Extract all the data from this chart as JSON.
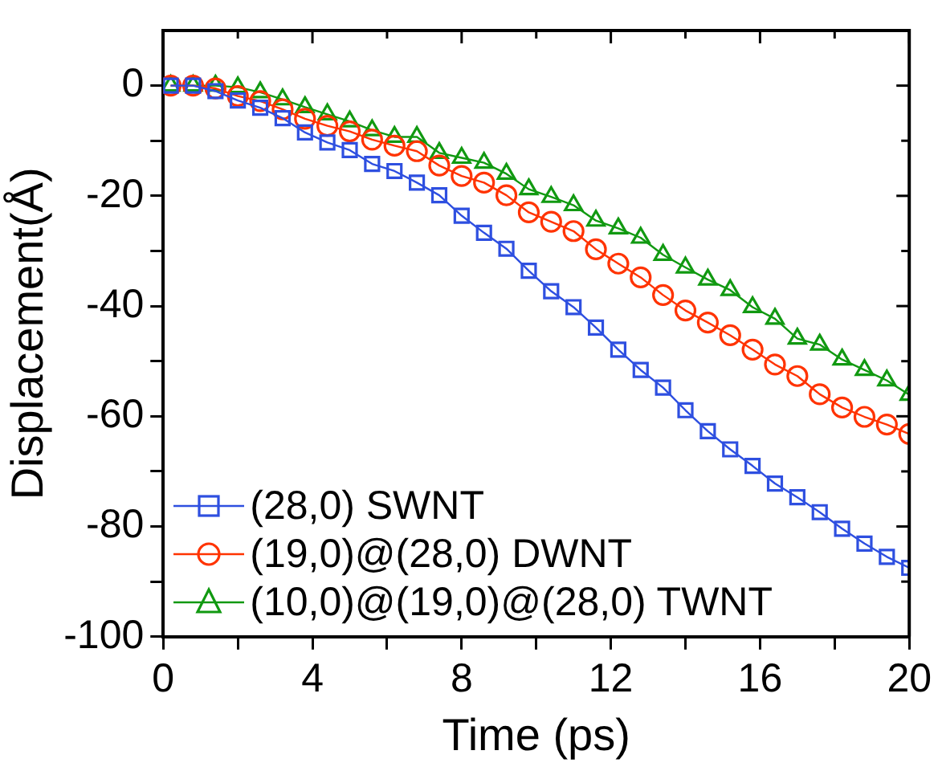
{
  "chart_data": {
    "type": "line",
    "xlabel": "Time (ps)",
    "ylabel": "Displacement(Å)",
    "x": [
      0.2,
      0.8,
      1.4,
      2.0,
      2.6,
      3.2,
      3.8,
      4.4,
      5.0,
      5.6,
      6.2,
      6.8,
      7.4,
      8.0,
      8.6,
      9.2,
      9.8,
      10.4,
      11.0,
      11.6,
      12.2,
      12.8,
      13.4,
      14.0,
      14.6,
      15.2,
      15.8,
      16.4,
      17.0,
      17.6,
      18.2,
      18.8,
      19.4,
      20.0
    ],
    "series": [
      {
        "name": "(28,0) SWNT",
        "color": "#2e4fe0",
        "marker": "square",
        "values": [
          0,
          0,
          -1,
          -2.7,
          -4,
          -5.9,
          -8.5,
          -10.3,
          -11.7,
          -14.2,
          -15.5,
          -17.6,
          -19.9,
          -23.6,
          -26.7,
          -29.6,
          -33.6,
          -37.3,
          -40.2,
          -43.9,
          -47.9,
          -51.6,
          -54.8,
          -58.9,
          -62.7,
          -66,
          -69,
          -72.2,
          -74.7,
          -77.4,
          -80.4,
          -83.1,
          -85.5,
          -87.5
        ]
      },
      {
        "name": "(19,0)@(28,0) DWNT",
        "color": "#ff3300",
        "marker": "circle",
        "values": [
          0,
          0,
          -0.5,
          -1.9,
          -2.8,
          -4.3,
          -6,
          -7.3,
          -8.3,
          -9.8,
          -10.9,
          -11.9,
          -14.5,
          -16.4,
          -17.6,
          -19.9,
          -23,
          -24.7,
          -26.4,
          -29.7,
          -32.3,
          -34.8,
          -38,
          -40.8,
          -43,
          -45.3,
          -47.9,
          -50.6,
          -52.7,
          -56,
          -58.4,
          -60.1,
          -61.5,
          -63.2
        ]
      },
      {
        "name": "(10,0)@(19,0)@(28,0) TWNT",
        "color": "#119911",
        "marker": "triangle",
        "values": [
          0,
          0,
          0,
          -0.3,
          -1.2,
          -2.5,
          -3.9,
          -5.2,
          -6.5,
          -8.1,
          -9.3,
          -9.3,
          -12.2,
          -13.1,
          -14,
          -16,
          -18.8,
          -20.2,
          -21.7,
          -24.5,
          -25.9,
          -27.6,
          -30.7,
          -33,
          -35.2,
          -37.1,
          -40.2,
          -42.3,
          -45.9,
          -47,
          -49.7,
          -51.6,
          -53.5,
          -56.1
        ]
      }
    ],
    "xlim": [
      0,
      20
    ],
    "xticks": [
      0,
      {
        "value": 2,
        "label": null
      },
      4,
      {
        "value": 6,
        "label": null
      },
      8,
      {
        "value": 10,
        "label": null
      },
      12,
      {
        "value": 14,
        "label": null
      },
      16,
      {
        "value": 18,
        "label": null
      },
      20
    ],
    "ylim": [
      -100,
      10
    ],
    "yticks": [
      -100,
      {
        "value": -90,
        "label": null
      },
      -80,
      {
        "value": -70,
        "label": null
      },
      -60,
      {
        "value": -50,
        "label": null
      },
      -40,
      {
        "value": -30,
        "label": null
      },
      -20,
      {
        "value": -10,
        "label": null
      },
      0
    ],
    "grid": false,
    "legend": "bottom left",
    "line_style": "solid"
  }
}
